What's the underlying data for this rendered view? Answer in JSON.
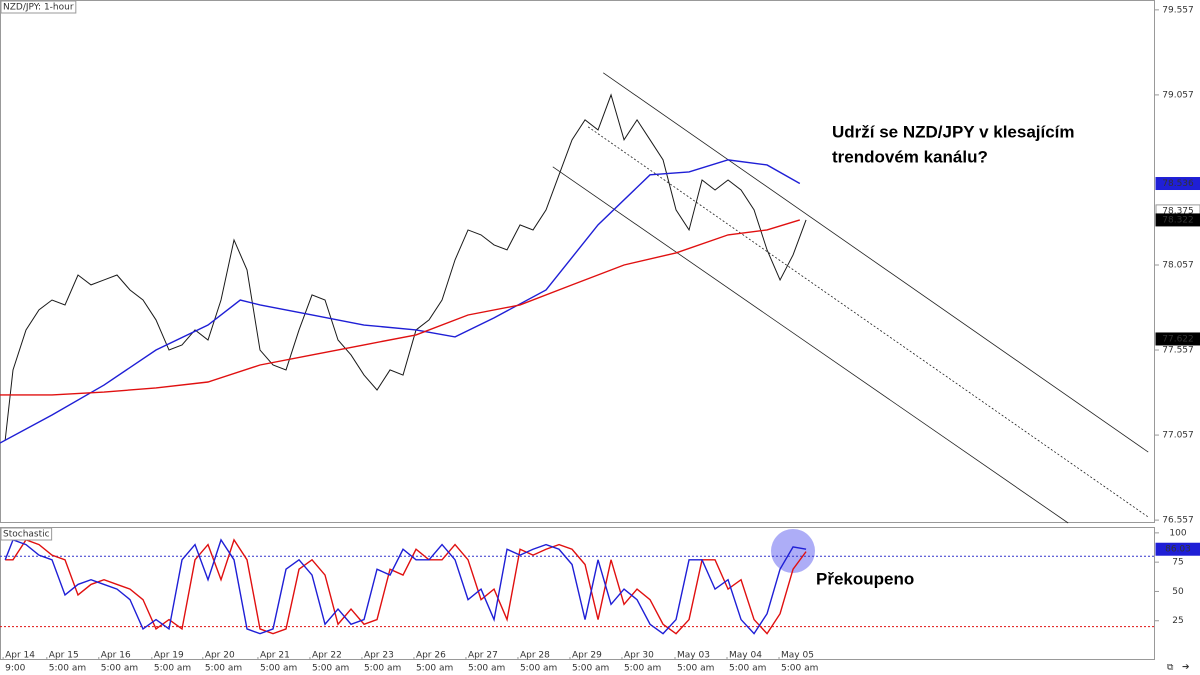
{
  "chart_data": [
    {
      "type": "line",
      "title": "NZD/JPY: 1-hour",
      "xlim": [
        0,
        22.21
      ],
      "ylim": [
        76.54,
        79.615
      ],
      "yticks": [
        76.557,
        77.057,
        77.557,
        78.057,
        79.057,
        79.557
      ],
      "x": [
        0.1,
        0.25,
        0.5,
        0.75,
        1,
        1.25,
        1.5,
        1.75,
        2,
        2.25,
        2.5,
        2.75,
        3,
        3.25,
        3.5,
        3.75,
        4,
        4.25,
        4.5,
        4.75,
        5,
        5.25,
        5.5,
        5.75,
        6,
        6.25,
        6.5,
        6.75,
        7,
        7.25,
        7.5,
        7.75,
        8,
        8.25,
        8.5,
        8.75,
        9,
        9.25,
        9.5,
        9.75,
        10,
        10.25,
        10.5,
        10.75,
        11,
        11.25,
        11.5,
        11.75,
        12,
        12.25,
        12.5,
        12.75,
        13,
        13.25,
        13.5,
        13.75,
        14,
        14.25,
        14.5,
        14.75,
        15,
        15.25,
        15.5
      ],
      "series": [
        {
          "color": "#1a1a1a",
          "values": [
            77.028,
            77.44,
            77.675,
            77.793,
            77.851,
            77.822,
            77.998,
            77.94,
            77.969,
            77.998,
            77.91,
            77.851,
            77.734,
            77.557,
            77.587,
            77.675,
            77.616,
            77.851,
            78.204,
            78.028,
            77.557,
            77.469,
            77.44,
            77.675,
            77.881,
            77.851,
            77.616,
            77.528,
            77.41,
            77.322,
            77.44,
            77.41,
            77.675,
            77.734,
            77.851,
            78.087,
            78.263,
            78.234,
            78.175,
            78.146,
            78.293,
            78.263,
            78.381,
            78.587,
            78.793,
            78.91,
            78.851,
            79.057,
            78.793,
            78.91,
            78.793,
            78.675,
            78.381,
            78.263,
            78.557,
            78.498,
            78.557,
            78.498,
            78.381,
            78.146,
            77.969,
            78.116,
            78.322
          ]
        },
        {
          "color": "#1f1fd6",
          "x": [
            0,
            1,
            2,
            3,
            4,
            4.62,
            5,
            6,
            7,
            8,
            8.75,
            9.5,
            10.5,
            11.5,
            12.5,
            13.25,
            14,
            14.75,
            15.38
          ],
          "values": [
            77.01,
            77.175,
            77.351,
            77.557,
            77.704,
            77.851,
            77.822,
            77.763,
            77.704,
            77.675,
            77.634,
            77.746,
            77.91,
            78.293,
            78.587,
            78.604,
            78.675,
            78.645,
            78.536
          ]
        },
        {
          "color": "#e01010",
          "x": [
            0,
            1,
            2,
            3,
            4,
            5,
            6,
            7,
            8,
            9,
            10,
            11,
            12,
            13,
            14,
            14.75,
            15.38
          ],
          "values": [
            77.293,
            77.293,
            77.31,
            77.334,
            77.369,
            77.469,
            77.528,
            77.587,
            77.646,
            77.763,
            77.822,
            77.94,
            78.057,
            78.128,
            78.234,
            78.263,
            78.322
          ]
        }
      ],
      "trendlines": [
        {
          "x": [
            11.6,
            22.08
          ],
          "y": [
            79.187,
            76.957
          ],
          "dash": false
        },
        {
          "x": [
            11.31,
            22.08
          ],
          "y": [
            78.869,
            76.575
          ],
          "dash": true
        },
        {
          "x": [
            10.63,
            20.54
          ],
          "y": [
            78.634,
            76.54
          ],
          "dash": false
        }
      ],
      "price_labels": [
        {
          "value": 78.536,
          "color": "#1f1fd6"
        },
        {
          "value": 78.375,
          "color": "#ffffff"
        },
        {
          "value": 78.322,
          "color": "#000000"
        },
        {
          "value": 77.622,
          "color": "#000000"
        }
      ],
      "annotation_lines": [
        "Udrží se NZD/JPY v klesajícím",
        "trendovém kanálu?"
      ]
    },
    {
      "type": "line",
      "title": "Stochastic",
      "xlim": [
        0,
        22.21
      ],
      "ylim": [
        -8.5,
        105
      ],
      "yticks": [
        25,
        50,
        75,
        100
      ],
      "x": [
        0.1,
        0.25,
        0.5,
        0.75,
        1,
        1.25,
        1.5,
        1.75,
        2,
        2.25,
        2.5,
        2.75,
        3,
        3.25,
        3.5,
        3.75,
        4,
        4.25,
        4.5,
        4.75,
        5,
        5.25,
        5.5,
        5.75,
        6,
        6.25,
        6.5,
        6.75,
        7,
        7.25,
        7.5,
        7.75,
        8,
        8.25,
        8.5,
        8.75,
        9,
        9.25,
        9.5,
        9.75,
        10,
        10.25,
        10.5,
        10.75,
        11,
        11.25,
        11.5,
        11.75,
        12,
        12.25,
        12.5,
        12.75,
        13,
        13.25,
        13.5,
        13.75,
        14,
        14.25,
        14.5,
        14.75,
        15,
        15.25,
        15.5
      ],
      "series": [
        {
          "color": "#e01010",
          "values": [
            77,
            77,
            94,
            90,
            81,
            77,
            47,
            56,
            60,
            56,
            52,
            43,
            18,
            26,
            18,
            77,
            90,
            60,
            94,
            77,
            18,
            14,
            18,
            69,
            77,
            64,
            22,
            35,
            22,
            26,
            69,
            64,
            86,
            77,
            77,
            90,
            77,
            43,
            52,
            26,
            86,
            81,
            86,
            90,
            86,
            73,
            26,
            77,
            39,
            52,
            43,
            22,
            14,
            26,
            77,
            77,
            52,
            60,
            26,
            14,
            31,
            69,
            84
          ]
        },
        {
          "color": "#1f1fd6",
          "values": [
            77,
            94,
            90,
            81,
            77,
            47,
            56,
            60,
            56,
            52,
            43,
            18,
            26,
            18,
            77,
            90,
            60,
            94,
            77,
            18,
            14,
            18,
            69,
            77,
            64,
            22,
            35,
            22,
            26,
            69,
            64,
            86,
            77,
            77,
            90,
            77,
            43,
            52,
            26,
            86,
            81,
            86,
            90,
            86,
            73,
            26,
            77,
            39,
            52,
            43,
            22,
            14,
            26,
            77,
            77,
            52,
            60,
            26,
            14,
            31,
            69,
            88,
            86.03
          ]
        }
      ],
      "levels": [
        {
          "value": 80,
          "color": "#3333cc"
        },
        {
          "value": 20,
          "color": "#e01010"
        }
      ],
      "price_labels": [
        {
          "value": 86.03,
          "color": "#1f1fd6"
        }
      ],
      "xticks": [
        {
          "value": 0.06,
          "label": "Apr 14"
        },
        {
          "value": 0.9,
          "label": "Apr 15"
        },
        {
          "value": 1.9,
          "label": "Apr 16"
        },
        {
          "value": 2.92,
          "label": "Apr 19"
        },
        {
          "value": 3.9,
          "label": "Apr 20"
        },
        {
          "value": 4.96,
          "label": "Apr 21"
        },
        {
          "value": 5.96,
          "label": "Apr 22"
        },
        {
          "value": 6.96,
          "label": "Apr 23"
        },
        {
          "value": 7.96,
          "label": "Apr 26"
        },
        {
          "value": 8.96,
          "label": "Apr 27"
        },
        {
          "value": 9.96,
          "label": "Apr 28"
        },
        {
          "value": 10.96,
          "label": "Apr 29"
        },
        {
          "value": 11.96,
          "label": "Apr 30"
        },
        {
          "value": 12.98,
          "label": "May 03"
        },
        {
          "value": 13.98,
          "label": "May 04"
        },
        {
          "value": 14.98,
          "label": "May 05"
        }
      ],
      "xtick_sublabels": [
        "9:00",
        "5:00 am",
        "5:00 am",
        "5:00 am",
        "5:00 am",
        "5:00 am",
        "5:00 am",
        "5:00 am",
        "5:00 am",
        "5:00 am",
        "5:00 am",
        "5:00 am",
        "5:00 am",
        "5:00 am",
        "5:00 am",
        "5:00 am"
      ],
      "annotation": "Překoupeno"
    }
  ]
}
